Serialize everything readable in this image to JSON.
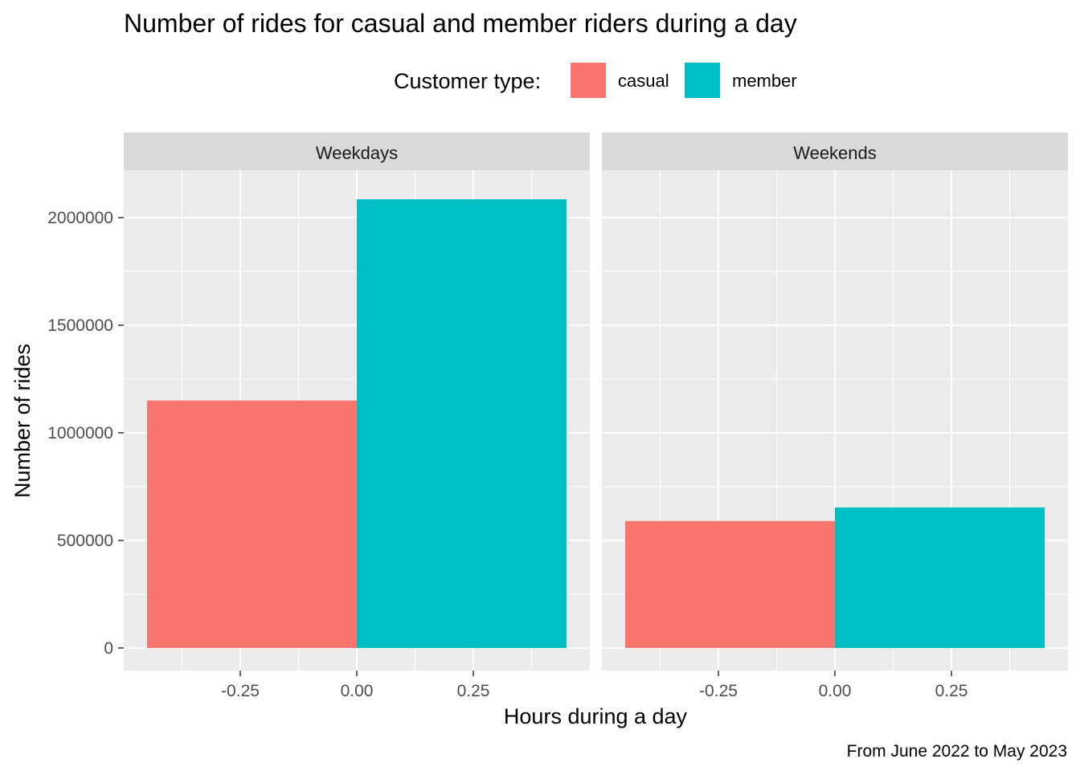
{
  "chart_data": {
    "type": "bar",
    "title": "Number of rides for casual and member riders during a day",
    "xlabel": "Hours during a day",
    "ylabel": "Number of rides",
    "caption": "From June 2022 to May 2023",
    "legend": {
      "title": "Customer type:",
      "placement": "top",
      "entries": [
        {
          "label": "casual",
          "color": "#F8766D"
        },
        {
          "label": "member",
          "color": "#00BFC4"
        }
      ]
    },
    "xlim": [
      -0.5,
      0.5
    ],
    "ylim": [
      -105000,
      2220000
    ],
    "x_ticks": [
      "-0.25",
      "0.00",
      "0.25"
    ],
    "x_tick_values": [
      -0.25,
      0,
      0.25
    ],
    "y_ticks": [
      "0",
      "500000",
      "1000000",
      "1500000",
      "2000000"
    ],
    "y_tick_values": [
      0,
      500000,
      1000000,
      1500000,
      2000000
    ],
    "grid": true,
    "facets": [
      {
        "label": "Weekdays",
        "bars": [
          {
            "series": "casual",
            "x_min": -0.45,
            "x_max": 0,
            "value": 1150000
          },
          {
            "series": "member",
            "x_min": 0,
            "x_max": 0.45,
            "value": 2085000
          }
        ]
      },
      {
        "label": "Weekends",
        "bars": [
          {
            "series": "casual",
            "x_min": -0.45,
            "x_max": 0,
            "value": 590000
          },
          {
            "series": "member",
            "x_min": 0,
            "x_max": 0.45,
            "value": 653000
          }
        ]
      }
    ]
  }
}
